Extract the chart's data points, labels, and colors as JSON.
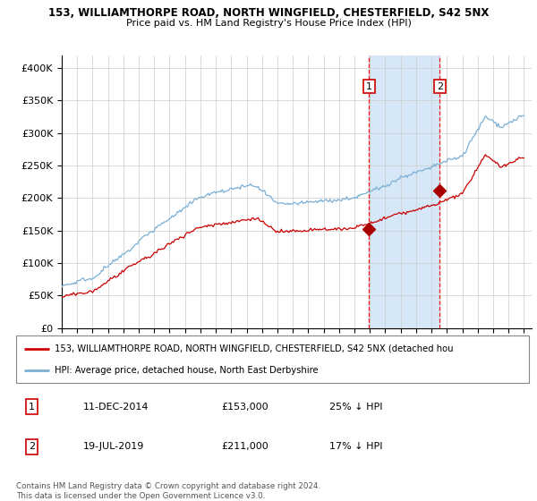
{
  "title": "153, WILLIAMTHORPE ROAD, NORTH WINGFIELD, CHESTERFIELD, S42 5NX",
  "subtitle": "Price paid vs. HM Land Registry's House Price Index (HPI)",
  "xlim": [
    1995.0,
    2025.5
  ],
  "ylim": [
    0,
    420000
  ],
  "yticks": [
    0,
    50000,
    100000,
    150000,
    200000,
    250000,
    300000,
    350000,
    400000
  ],
  "ytick_labels": [
    "£0",
    "£50K",
    "£100K",
    "£150K",
    "£200K",
    "£250K",
    "£300K",
    "£350K",
    "£400K"
  ],
  "xticks": [
    1995,
    1996,
    1997,
    1998,
    1999,
    2000,
    2001,
    2002,
    2003,
    2004,
    2005,
    2006,
    2007,
    2008,
    2009,
    2010,
    2011,
    2012,
    2013,
    2014,
    2015,
    2016,
    2017,
    2018,
    2019,
    2020,
    2021,
    2022,
    2023,
    2024,
    2025
  ],
  "hpi_color": "#7bafd4",
  "price_color": "#cc0000",
  "marker_color": "#aa0000",
  "shade_color": "#d6e8f7",
  "sale1_x": 2014.95,
  "sale1_y": 153000,
  "sale2_x": 2019.54,
  "sale2_y": 211000,
  "shade_x1": 2014.95,
  "shade_x2": 2019.54,
  "legend_line1": "153, WILLIAMTHORPE ROAD, NORTH WINGFIELD, CHESTERFIELD, S42 5NX (detached hou",
  "legend_line2": "HPI: Average price, detached house, North East Derbyshire",
  "table_data": [
    {
      "num": "1",
      "date": "11-DEC-2014",
      "price": "£153,000",
      "hpi": "25% ↓ HPI"
    },
    {
      "num": "2",
      "date": "19-JUL-2019",
      "price": "£211,000",
      "hpi": "17% ↓ HPI"
    }
  ],
  "footer": "Contains HM Land Registry data © Crown copyright and database right 2024.\nThis data is licensed under the Open Government Licence v3.0.",
  "background_color": "#ffffff",
  "grid_color": "#cccccc"
}
